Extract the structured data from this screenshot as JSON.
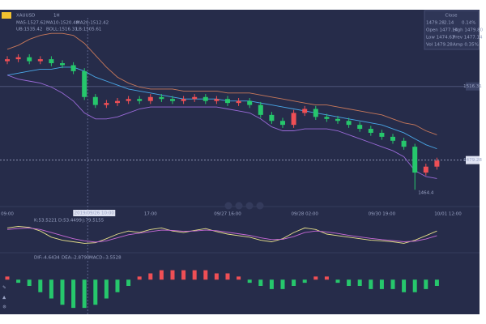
{
  "chart_data": {
    "type": "candlestick",
    "symbol": "XAUUSD",
    "period": "1H",
    "legend": [
      {
        "text": "MA5:1527.62",
        "color": "#e8a23a"
      },
      {
        "text": "MA10:1520.48",
        "color": "#c86ad8"
      },
      {
        "text": "MA20:1512.42",
        "color": "#4aa8e8"
      }
    ],
    "legend2": [
      {
        "text": "UB:1535.42",
        "color": "#c8785a"
      },
      {
        "text": "BOLL:1516.31",
        "color": "#4aa8e8"
      },
      {
        "text": "LB:1505.61",
        "color": "#9a6ad8"
      }
    ],
    "up_color": "#ef4f55",
    "down_color": "#26c76c",
    "open": [
      1529,
      1530,
      1531,
      1529,
      1530,
      1528,
      1527,
      1524,
      1511,
      1507,
      1508,
      1509,
      1510,
      1509,
      1511,
      1510,
      1509,
      1510,
      1511,
      1509,
      1510,
      1508,
      1509,
      1507,
      1502,
      1499,
      1497,
      1503,
      1505,
      1501,
      1500,
      1499,
      1497,
      1495,
      1493,
      1491,
      1489,
      1486,
      1473,
      1476
    ],
    "high": [
      1531.5,
      1532.5,
      1532.5,
      1531.5,
      1531.5,
      1529.5,
      1528.5,
      1525.5,
      1512.5,
      1509.5,
      1510.5,
      1511.5,
      1511.5,
      1512.5,
      1512.5,
      1511.5,
      1511.5,
      1512.5,
      1512.5,
      1511.5,
      1511.5,
      1510.5,
      1510.5,
      1508.5,
      1503.5,
      1500.5,
      1504.5,
      1506.5,
      1506.5,
      1502.5,
      1501.5,
      1500.5,
      1498.5,
      1496.5,
      1494.5,
      1492.5,
      1490.5,
      1487.5,
      1477.5,
      1480.5
    ],
    "low": [
      1527.5,
      1528.5,
      1527.5,
      1527.5,
      1526.5,
      1525.5,
      1522.5,
      1509.5,
      1505.5,
      1505.5,
      1506.5,
      1507.5,
      1507.5,
      1507.5,
      1508.5,
      1507.5,
      1507.5,
      1508.5,
      1507.5,
      1507.5,
      1506.5,
      1506.5,
      1505.5,
      1500.5,
      1497.5,
      1495.5,
      1495.5,
      1501.5,
      1499.5,
      1498.5,
      1497.5,
      1495.5,
      1493.5,
      1491.5,
      1489.5,
      1487.5,
      1484.5,
      1464.4,
      1471.5,
      1474.5
    ],
    "close": [
      1530,
      1531,
      1529,
      1530,
      1528,
      1527,
      1524,
      1511,
      1507,
      1508,
      1509,
      1510,
      1509,
      1511,
      1510,
      1509,
      1510,
      1511,
      1509,
      1510,
      1508,
      1509,
      1507,
      1502,
      1499,
      1497,
      1503,
      1505,
      1501,
      1500,
      1499,
      1497,
      1495,
      1493,
      1491,
      1489,
      1486,
      1473,
      1476,
      1479
    ],
    "ylim": [
      1460,
      1550
    ],
    "yticks": [
      1516.31,
      1479.28
    ],
    "overlays": [
      {
        "color": "#4aa8e8",
        "values": [
          1522,
          1523,
          1524,
          1525,
          1525,
          1526,
          1526,
          1524,
          1521,
          1519,
          1517,
          1515,
          1514,
          1513,
          1512,
          1511,
          1510,
          1510,
          1510,
          1510,
          1509,
          1509,
          1509,
          1508,
          1507,
          1506,
          1505,
          1504,
          1503,
          1502,
          1501,
          1500,
          1499,
          1498,
          1497,
          1495,
          1493,
          1490,
          1487,
          1485
        ]
      },
      {
        "color": "#c8785a",
        "values": [
          1535,
          1537,
          1540,
          1542,
          1543,
          1543,
          1542,
          1538,
          1532,
          1526,
          1521,
          1518,
          1516,
          1515,
          1515,
          1515,
          1514,
          1514,
          1514,
          1514,
          1513,
          1513,
          1513,
          1512,
          1511,
          1510,
          1509,
          1508,
          1507,
          1507,
          1506,
          1505,
          1504,
          1503,
          1502,
          1500,
          1498,
          1497,
          1494,
          1492
        ]
      },
      {
        "color": "#9a6ad8",
        "values": [
          1522,
          1520,
          1519,
          1518,
          1516,
          1513,
          1509,
          1503,
          1500,
          1500,
          1501,
          1503,
          1505,
          1506,
          1506,
          1506,
          1506,
          1506,
          1506,
          1506,
          1505,
          1504,
          1503,
          1500,
          1496,
          1494,
          1494,
          1495,
          1495,
          1495,
          1494,
          1492,
          1490,
          1488,
          1486,
          1484,
          1481,
          1474,
          1471,
          1470
        ]
      }
    ],
    "low_annotation": "1464.4",
    "x_labels": [
      {
        "value": 0,
        "label": "09:00"
      },
      {
        "value": 13,
        "label": "17:00"
      },
      {
        "value": 20,
        "label": "09/27 16:00"
      },
      {
        "value": 27,
        "label": "09/28 02:00"
      },
      {
        "value": 34,
        "label": "09/30 19:00"
      },
      {
        "value": 40,
        "label": "10/01 12:00"
      }
    ],
    "crosshair_label": "2019/09/26 10:00",
    "info": {
      "title": "Close",
      "rows": [
        [
          "1479.28",
          "2.14",
          "0.14%"
        ],
        [
          "Open 1477.14",
          "High 1479.80"
        ],
        [
          "Low 1474.63",
          "Prev 1477.14"
        ],
        [
          "Vol 1479.28",
          "Amp 0.35%"
        ]
      ]
    },
    "kdj": {
      "legend": [
        {
          "text": "K:53.5221",
          "color": "#e8e08a"
        },
        {
          "text": "D:53.4499",
          "color": "#c86ad8"
        },
        {
          "text": "J:79.5155",
          "color": "#4aa8e8"
        }
      ],
      "ylim": [
        0,
        100
      ],
      "series": [
        {
          "color": "#e8e08a",
          "values": [
            70,
            75,
            72,
            60,
            40,
            30,
            25,
            20,
            22,
            35,
            50,
            60,
            55,
            65,
            70,
            60,
            55,
            62,
            68,
            58,
            50,
            45,
            40,
            30,
            25,
            35,
            55,
            70,
            65,
            50,
            45,
            40,
            35,
            30,
            28,
            25,
            20,
            30,
            45,
            60
          ]
        },
        {
          "color": "#c86ad8",
          "values": [
            65,
            68,
            70,
            65,
            55,
            45,
            35,
            28,
            24,
            28,
            38,
            48,
            53,
            58,
            63,
            62,
            59,
            60,
            63,
            61,
            56,
            51,
            46,
            38,
            32,
            33,
            42,
            55,
            60,
            57,
            52,
            46,
            41,
            36,
            32,
            29,
            25,
            27,
            34,
            45
          ]
        }
      ]
    },
    "macd": {
      "legend": [
        {
          "text": "DIF:-4.6434",
          "color": "#e8e08a"
        },
        {
          "text": "DEA:-2.8790",
          "color": "#c86ad8"
        },
        {
          "text": "MACD:-3.5528",
          "color": "#4aa8e8"
        }
      ],
      "ylim": [
        -10,
        6
      ],
      "values": [
        1,
        -1,
        -2,
        -4,
        -6,
        -8,
        -9,
        -9,
        -8,
        -6,
        -4,
        -2,
        1,
        2,
        3,
        3,
        3,
        3,
        3,
        2,
        2,
        1,
        -1,
        -2,
        -3,
        -3,
        -2,
        -1,
        1,
        1,
        -1,
        -2,
        -2,
        -3,
        -3,
        -3,
        -4,
        -4,
        -3,
        -2
      ]
    }
  }
}
